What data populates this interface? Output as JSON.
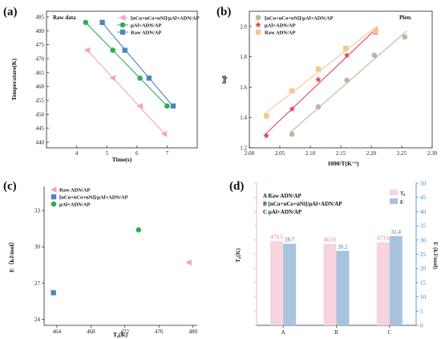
{
  "colors": {
    "pink": "#f0a7b8",
    "green": "#2eae55",
    "blue": "#4d86bc",
    "gray": "#b9b8a3",
    "red": "#e2455d",
    "orange": "#f6c68d",
    "barPink": "#f7d3dc",
    "barBlue": "#a9c3de",
    "rightAxis": "#2e86c1"
  },
  "panels": {
    "a": "(a)",
    "b": "(b)",
    "c": "(c)",
    "d": "(d)"
  },
  "chart_data": [
    {
      "type": "line",
      "panel": "a",
      "annotation": "Raw data",
      "xlabel": "Time(s)",
      "ylabel": "Temperature(K)",
      "xlim": [
        3,
        8
      ],
      "ylim": [
        438,
        487
      ],
      "xticks": [
        4,
        5,
        6,
        7
      ],
      "yticks": [
        440,
        445,
        450,
        455,
        460,
        465,
        470,
        475,
        480,
        485
      ],
      "legend_position": "top-right",
      "series": [
        {
          "name": "[nCu+nCo+nNi]/μAl+ADN/AP",
          "color_key": "pink",
          "marker": "triangle-left",
          "x": [
            4.35,
            5.2,
            6.1,
            6.9
          ],
          "y": [
            473,
            463,
            453,
            443
          ]
        },
        {
          "name": "μAl+ADN/AP",
          "color_key": "green",
          "marker": "circle",
          "x": [
            4.3,
            5.2,
            6.1,
            7.0
          ],
          "y": [
            483,
            473,
            463,
            453
          ]
        },
        {
          "name": "Raw ADN/AP",
          "color_key": "blue",
          "marker": "square",
          "x": [
            4.85,
            5.6,
            6.4,
            7.2
          ],
          "y": [
            483,
            473,
            463,
            453
          ]
        }
      ]
    },
    {
      "type": "line",
      "panel": "b",
      "annotation": "Plots",
      "xlabel": "1000/T(K⁻¹)",
      "ylabel": "lnβ",
      "xlim": [
        2.0,
        2.3
      ],
      "ylim": [
        1.2,
        2.1
      ],
      "xticks": [
        2.0,
        2.05,
        2.1,
        2.15,
        2.2,
        2.25,
        2.3
      ],
      "xtick_labels": [
        "2.00",
        "2.05",
        "2.10",
        "2.15",
        "2.20",
        "2.25",
        "2.30"
      ],
      "yticks": [
        1.2,
        1.4,
        1.6,
        1.8,
        2.0
      ],
      "ytick_labels": [
        "1.2",
        "1.4",
        "1.6",
        "1.8",
        "2.0"
      ],
      "legend_position": "top-left",
      "series": [
        {
          "name": "[nCu+nCo+nNi]/μAl+ADN/AP",
          "color_key": "gray",
          "marker": "circle",
          "x": [
            2.07,
            2.113,
            2.16,
            2.205,
            2.255
          ],
          "y": [
            1.29,
            1.47,
            1.645,
            1.81,
            1.93
          ]
        },
        {
          "name": "μAl+ADN/AP",
          "color_key": "red",
          "marker": "star",
          "x": [
            2.028,
            2.07,
            2.113,
            2.16,
            2.207
          ],
          "y": [
            1.28,
            1.455,
            1.65,
            1.81,
            1.96
          ]
        },
        {
          "name": "Raw ADN/AP",
          "color_key": "orange",
          "marker": "square",
          "x": [
            2.028,
            2.07,
            2.113,
            2.158,
            2.207
          ],
          "y": [
            1.41,
            1.575,
            1.72,
            1.855,
            1.97
          ]
        }
      ]
    },
    {
      "type": "scatter",
      "panel": "c",
      "xlabel": "T₀(K)",
      "ylabel": "E（kJ/mol）",
      "xlim": [
        462.5,
        480.5
      ],
      "ylim": [
        23.5,
        35
      ],
      "xticks": [
        464,
        468,
        472,
        476,
        480
      ],
      "yticks": [
        24,
        27,
        30,
        33
      ],
      "legend_position": "top-left",
      "series": [
        {
          "name": "Raw ADN/AP",
          "color_key": "pink",
          "marker": "triangle-left",
          "x": [
            479.5
          ],
          "y": [
            28.7
          ]
        },
        {
          "name": "[nCu+nCo+nNi]/μAl+ADN/AP",
          "color_key": "blue",
          "marker": "square",
          "x": [
            463.6
          ],
          "y": [
            26.2
          ]
        },
        {
          "name": "μAl+ADN/AP",
          "color_key": "green",
          "marker": "circle",
          "x": [
            473.6
          ],
          "y": [
            31.4
          ]
        }
      ]
    },
    {
      "type": "bar",
      "panel": "d",
      "categories": [
        "A",
        "B",
        "C"
      ],
      "category_notes": [
        "A Raw ADN/AP",
        "B [nCu+nCo+nNi]/μAl+ADN/AP",
        "C μAl+ADN/AP"
      ],
      "ylabel": "T₀(K)",
      "ylabel_right": "E (kJ/mol)",
      "ylim_right": [
        0,
        50
      ],
      "yticks_right": [
        0,
        5,
        10,
        15,
        20,
        25,
        30,
        35,
        40,
        45,
        50
      ],
      "legend_position": "top-right",
      "series": [
        {
          "name": "T₀",
          "color_key": "barPink",
          "values": [
            479.5,
            463.6,
            473.6
          ],
          "labels": [
            "479.5",
            "463.6",
            "473.6"
          ]
        },
        {
          "name": "E",
          "color_key": "barBlue",
          "values": [
            28.7,
            26.2,
            31.4
          ],
          "labels": [
            "28.7",
            "26.2",
            "31.4"
          ]
        }
      ]
    }
  ]
}
